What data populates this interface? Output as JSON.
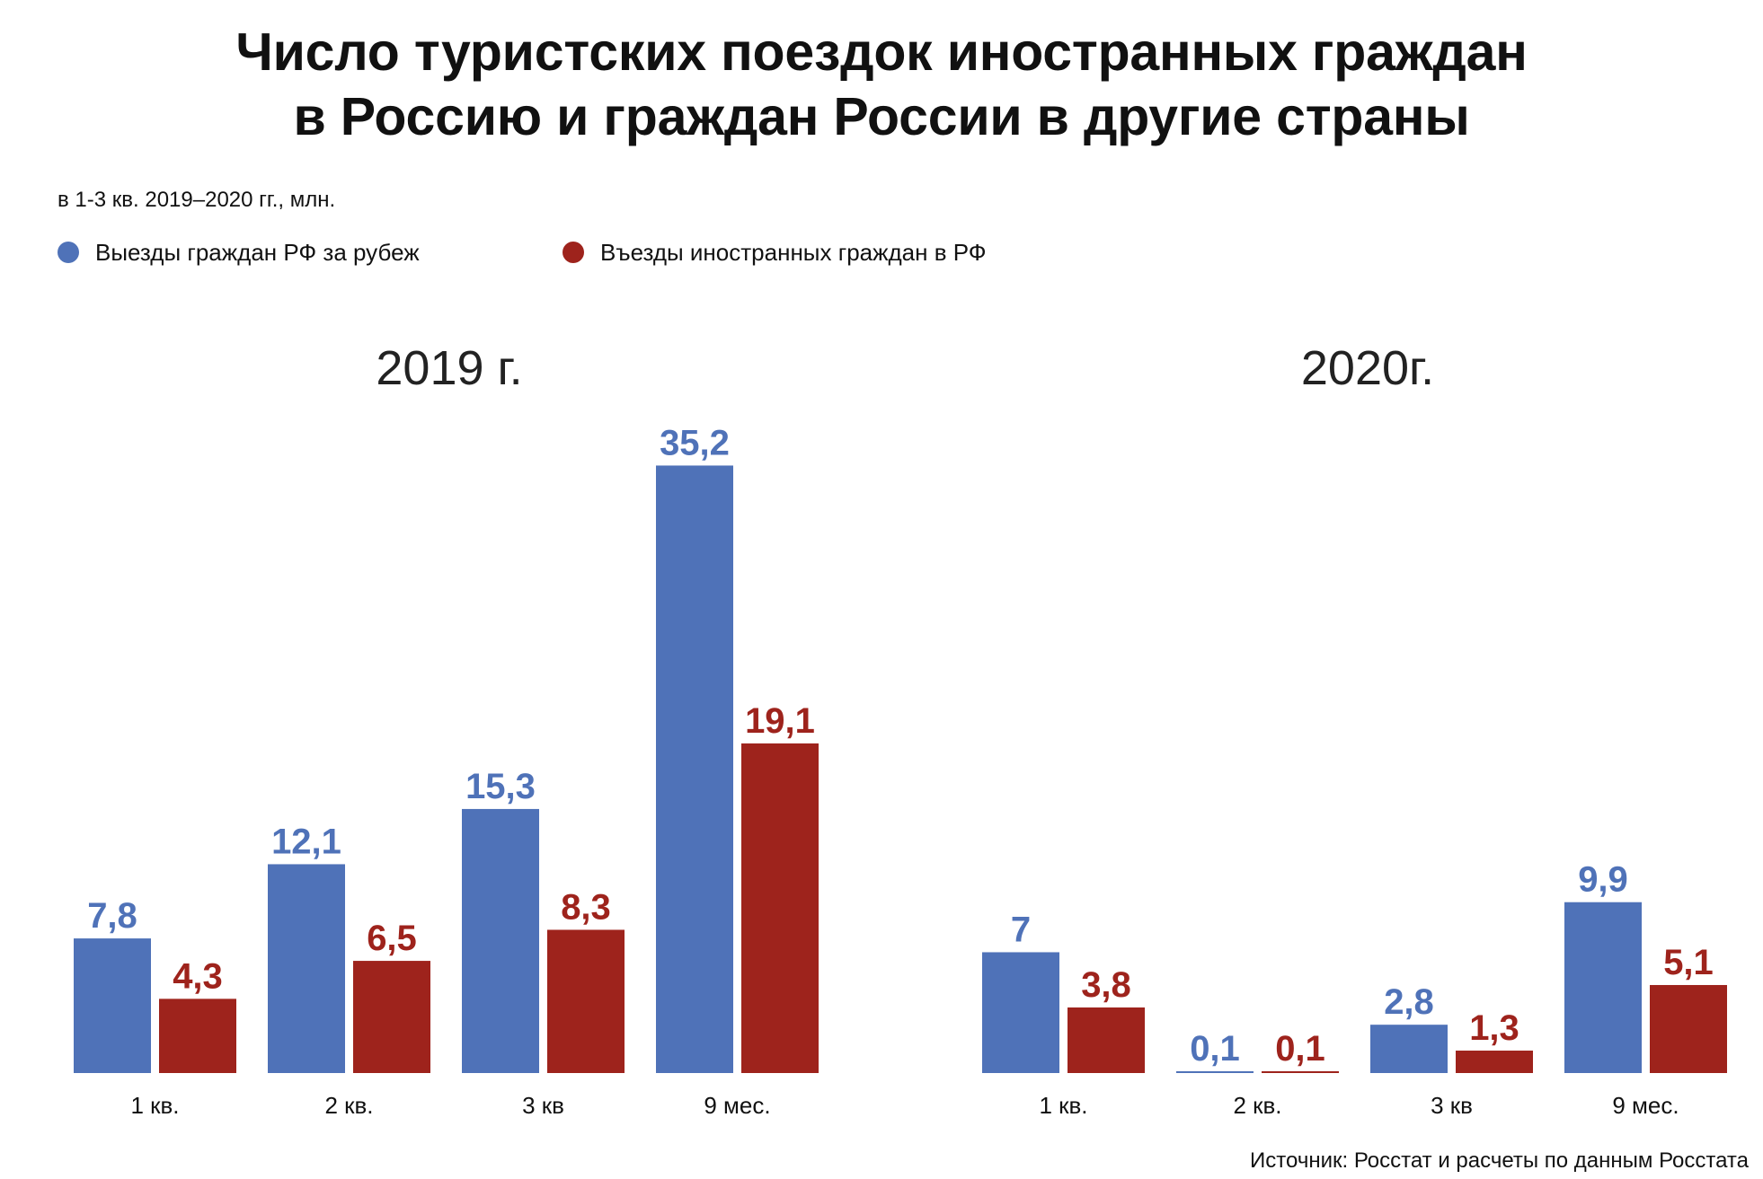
{
  "title": {
    "line1": "Число туристских поездок иностранных граждан",
    "line2": "в Россию и граждан России в другие страны"
  },
  "subtitle": "в 1-3 кв. 2019–2020 гг., млн.",
  "source": "Источник: Росстат и расчеты по данным Росстата",
  "colors": {
    "blue": "#4f72b8",
    "red": "#9e231c"
  },
  "chart_data": {
    "type": "bar",
    "legend": [
      {
        "label": "Выезды граждан РФ за рубеж",
        "color": "#4f72b8"
      },
      {
        "label": "Въезды иностранных граждан в РФ",
        "color": "#9e231c"
      }
    ],
    "legend_placement": "top-left",
    "grid": false,
    "ylim": [
      0,
      40
    ],
    "panels": [
      {
        "title": "2019 г.",
        "categories": [
          "1 кв.",
          "2 кв.",
          "3 кв",
          "9 мес."
        ],
        "series": [
          {
            "name": "Выезды граждан РФ за рубеж",
            "values": [
              7.8,
              12.1,
              15.3,
              35.2
            ],
            "labels": [
              "7,8",
              "12,1",
              "15,3",
              "35,2"
            ]
          },
          {
            "name": "Въезды иностранных граждан в РФ",
            "values": [
              4.3,
              6.5,
              8.3,
              19.1
            ],
            "labels": [
              "4,3",
              "6,5",
              "8,3",
              "19,1"
            ]
          }
        ]
      },
      {
        "title": "2020г.",
        "categories": [
          "1 кв.",
          "2 кв.",
          "3 кв",
          "9 мес."
        ],
        "series": [
          {
            "name": "Выезды граждан РФ за рубеж",
            "values": [
              7,
              0.1,
              2.8,
              9.9
            ],
            "labels": [
              "7",
              "0,1",
              "2,8",
              "9,9"
            ]
          },
          {
            "name": "Въезды иностранных граждан в РФ",
            "values": [
              3.8,
              0.1,
              1.3,
              5.1
            ],
            "labels": [
              "3,8",
              "0,1",
              "1,3",
              "5,1"
            ]
          }
        ]
      }
    ]
  }
}
